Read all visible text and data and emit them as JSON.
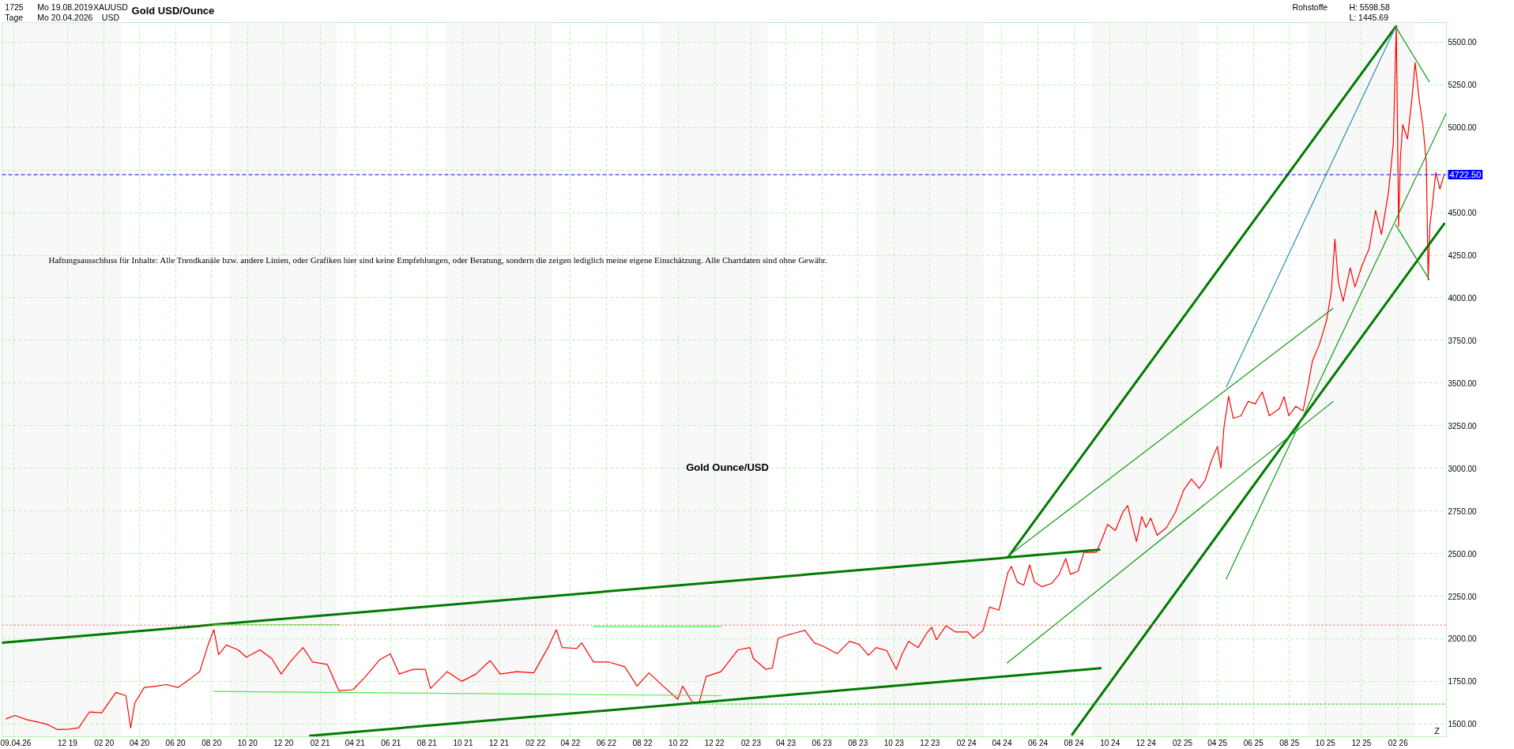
{
  "chart_data": {
    "type": "line",
    "title": "Gold USD/Ounce",
    "annotations": [
      "1725",
      "Tage",
      "Mo 19.08.2019",
      "Mo 20.04.2026",
      "XAUUSD",
      "USD",
      "Rohstoffe",
      "H: 5598.58",
      "L: 1445.69",
      "Haftungsausschluss für Inhalte: Alle Trendkanäle bzw. andere Linien, oder Grafiken hier sind keine Empfehlungen, oder Beratung, sondern die zeigen lediglich meine eigene Einschätzung. Alle Chartdaten sind ohne Gewähr.",
      "Gold Ounce/USD",
      "Z"
    ],
    "xlim": [
      "2019-08-12",
      "2026-04-24"
    ],
    "ylim": [
      1425,
      5615
    ],
    "xticks": [
      {
        "value": "2019-09-01",
        "label": "09.04.26"
      },
      {
        "value": "2019-12-01",
        "label": "12 19"
      },
      {
        "value": "2020-02-01",
        "label": "02 20"
      },
      {
        "value": "2020-04-01",
        "label": "04 20"
      },
      {
        "value": "2020-06-01",
        "label": "06 20"
      },
      {
        "value": "2020-08-01",
        "label": "08 20"
      },
      {
        "value": "2020-10-01",
        "label": "10 20"
      },
      {
        "value": "2020-12-01",
        "label": "12 20"
      },
      {
        "value": "2021-02-01",
        "label": "02 21"
      },
      {
        "value": "2021-04-01",
        "label": "04 21"
      },
      {
        "value": "2021-06-01",
        "label": "06 21"
      },
      {
        "value": "2021-08-01",
        "label": "08 21"
      },
      {
        "value": "2021-10-01",
        "label": "10 21"
      },
      {
        "value": "2021-12-01",
        "label": "12 21"
      },
      {
        "value": "2022-02-01",
        "label": "02 22"
      },
      {
        "value": "2022-04-01",
        "label": "04 22"
      },
      {
        "value": "2022-06-01",
        "label": "06 22"
      },
      {
        "value": "2022-08-01",
        "label": "08 22"
      },
      {
        "value": "2022-10-01",
        "label": "10 22"
      },
      {
        "value": "2022-12-01",
        "label": "12 22"
      },
      {
        "value": "2023-02-01",
        "label": "02 23"
      },
      {
        "value": "2023-04-01",
        "label": "04 23"
      },
      {
        "value": "2023-06-01",
        "label": "06 23"
      },
      {
        "value": "2023-08-01",
        "label": "08 23"
      },
      {
        "value": "2023-10-01",
        "label": "10 23"
      },
      {
        "value": "2023-12-01",
        "label": "12 23"
      },
      {
        "value": "2024-02-01",
        "label": "02 24"
      },
      {
        "value": "2024-04-01",
        "label": "04 24"
      },
      {
        "value": "2024-06-01",
        "label": "06 24"
      },
      {
        "value": "2024-08-01",
        "label": "08 24"
      },
      {
        "value": "2024-10-01",
        "label": "10 24"
      },
      {
        "value": "2024-12-01",
        "label": "12 24"
      },
      {
        "value": "2025-02-01",
        "label": "02 25"
      },
      {
        "value": "2025-04-01",
        "label": "04 25"
      },
      {
        "value": "2025-06-01",
        "label": "06 25"
      },
      {
        "value": "2025-08-01",
        "label": "08 25"
      },
      {
        "value": "2025-10-01",
        "label": "10 25"
      },
      {
        "value": "2025-12-01",
        "label": "12 25"
      },
      {
        "value": "2026-02-01",
        "label": "02 26"
      }
    ],
    "yticks": [
      {
        "value": 1500,
        "label": "1500.00"
      },
      {
        "value": 1750,
        "label": "1750.00"
      },
      {
        "value": 2000,
        "label": "2000.00"
      },
      {
        "value": 2250,
        "label": "2250.00"
      },
      {
        "value": 2500,
        "label": "2500.00"
      },
      {
        "value": 2750,
        "label": "2750.00"
      },
      {
        "value": 3000,
        "label": "3000.00"
      },
      {
        "value": 3250,
        "label": "3250.00"
      },
      {
        "value": 3500,
        "label": "3500.00"
      },
      {
        "value": 3750,
        "label": "3750.00"
      },
      {
        "value": 4000,
        "label": "4000.00"
      },
      {
        "value": 4250,
        "label": "4250.00"
      },
      {
        "value": 4500,
        "label": "4500.00"
      },
      {
        "value": 4750,
        "label": null
      },
      {
        "value": 5000,
        "label": "5000.00"
      },
      {
        "value": 5250,
        "label": "5250.00"
      },
      {
        "value": 5500,
        "label": "5500.00"
      }
    ],
    "grid": true,
    "series": [
      {
        "color": "#ff0000",
        "x": [
          "2019-08-19",
          "2019-09-03",
          "2019-09-23",
          "2019-10-13",
          "2019-10-29",
          "2019-11-14",
          "2019-12-04",
          "2019-12-20",
          "2020-01-07",
          "2020-01-28",
          "2020-02-21",
          "2020-03-09",
          "2020-03-17",
          "2020-03-24",
          "2020-04-09",
          "2020-04-30",
          "2020-05-16",
          "2020-06-05",
          "2020-06-26",
          "2020-07-12",
          "2020-07-26",
          "2020-08-05",
          "2020-08-13",
          "2020-08-26",
          "2020-09-15",
          "2020-09-29",
          "2020-10-22",
          "2020-11-11",
          "2020-11-27",
          "2020-12-14",
          "2021-01-03",
          "2021-01-19",
          "2021-02-13",
          "2021-03-05",
          "2021-03-29",
          "2021-04-19",
          "2021-05-13",
          "2021-05-31",
          "2021-06-15",
          "2021-07-09",
          "2021-07-29",
          "2021-08-07",
          "2021-09-04",
          "2021-09-29",
          "2021-10-23",
          "2021-11-16",
          "2021-12-03",
          "2021-12-31",
          "2022-01-29",
          "2022-02-22",
          "2022-03-08",
          "2022-03-18",
          "2022-04-12",
          "2022-04-20",
          "2022-05-10",
          "2022-06-04",
          "2022-07-02",
          "2022-07-23",
          "2022-08-12",
          "2022-09-05",
          "2022-09-30",
          "2022-10-08",
          "2022-10-24",
          "2022-11-05",
          "2022-11-17",
          "2022-12-12",
          "2023-01-10",
          "2023-01-30",
          "2023-02-05",
          "2023-02-26",
          "2023-03-09",
          "2023-03-19",
          "2023-04-04",
          "2023-04-14",
          "2023-05-03",
          "2023-05-19",
          "2023-06-03",
          "2023-06-27",
          "2023-07-18",
          "2023-08-03",
          "2023-08-19",
          "2023-09-01",
          "2023-09-19",
          "2023-10-05",
          "2023-10-15",
          "2023-10-26",
          "2023-11-11",
          "2023-11-27",
          "2023-12-04",
          "2023-12-12",
          "2023-12-28",
          "2024-01-13",
          "2024-02-03",
          "2024-02-13",
          "2024-02-29",
          "2024-03-11",
          "2024-03-27",
          "2024-04-03",
          "2024-04-11",
          "2024-04-17",
          "2024-04-27",
          "2024-05-08",
          "2024-05-18",
          "2024-05-26",
          "2024-06-08",
          "2024-06-24",
          "2024-07-07",
          "2024-07-18",
          "2024-07-26",
          "2024-08-08",
          "2024-08-18",
          "2024-08-31",
          "2024-09-08",
          "2024-09-19",
          "2024-09-27",
          "2024-10-10",
          "2024-10-23",
          "2024-10-31",
          "2024-11-10",
          "2024-11-15",
          "2024-11-24",
          "2024-12-01",
          "2024-12-09",
          "2024-12-20",
          "2025-01-05",
          "2025-01-20",
          "2025-02-03",
          "2025-02-16",
          "2025-03-01",
          "2025-03-11",
          "2025-03-22",
          "2025-04-01",
          "2025-04-07",
          "2025-04-12",
          "2025-04-20",
          "2025-04-28",
          "2025-05-11",
          "2025-05-23",
          "2025-06-04",
          "2025-06-16",
          "2025-06-28",
          "2025-07-15",
          "2025-07-23",
          "2025-07-31",
          "2025-08-12",
          "2025-08-24",
          "2025-09-01",
          "2025-09-09",
          "2025-09-21",
          "2025-10-03",
          "2025-10-11",
          "2025-10-17",
          "2025-10-23",
          "2025-10-31",
          "2025-11-12",
          "2025-11-20",
          "2025-12-02",
          "2025-12-14",
          "2025-12-25",
          "2026-01-04",
          "2026-01-16",
          "2026-01-24",
          "2026-01-29",
          "2026-02-02",
          "2026-02-05",
          "2026-02-09",
          "2026-02-17",
          "2026-02-25",
          "2026-03-02",
          "2026-03-09",
          "2026-03-15",
          "2026-03-21",
          "2026-03-24",
          "2026-03-27",
          "2026-03-31",
          "2026-04-06",
          "2026-04-13",
          "2026-04-20"
        ],
        "values": [
          1530,
          1550,
          1525,
          1510,
          1496,
          1467,
          1470,
          1478,
          1570,
          1566,
          1685,
          1666,
          1476,
          1623,
          1714,
          1722,
          1731,
          1714,
          1765,
          1807,
          1963,
          2053,
          1906,
          1963,
          1935,
          1892,
          1935,
          1884,
          1793,
          1872,
          1948,
          1864,
          1850,
          1694,
          1702,
          1779,
          1877,
          1912,
          1793,
          1821,
          1821,
          1708,
          1807,
          1750,
          1793,
          1872,
          1793,
          1807,
          1800,
          1948,
          2053,
          1948,
          1943,
          1976,
          1864,
          1864,
          1836,
          1722,
          1800,
          1722,
          1645,
          1722,
          1630,
          1625,
          1779,
          1807,
          1935,
          1948,
          1884,
          1820,
          1829,
          2003,
          2022,
          2031,
          2050,
          1976,
          1957,
          1912,
          1985,
          1967,
          1903,
          1948,
          1930,
          1820,
          1912,
          1985,
          1948,
          2040,
          2067,
          1994,
          2076,
          2040,
          2040,
          2003,
          2049,
          2186,
          2168,
          2269,
          2388,
          2424,
          2333,
          2314,
          2433,
          2333,
          2305,
          2324,
          2378,
          2470,
          2378,
          2397,
          2507,
          2507,
          2507,
          2598,
          2671,
          2635,
          2744,
          2781,
          2635,
          2571,
          2717,
          2653,
          2708,
          2607,
          2653,
          2744,
          2873,
          2937,
          2882,
          2927,
          3046,
          3129,
          3001,
          3238,
          3422,
          3293,
          3308,
          3392,
          3378,
          3448,
          3308,
          3350,
          3420,
          3308,
          3364,
          3336,
          3476,
          3630,
          3728,
          3868,
          4036,
          4344,
          4092,
          3980,
          4176,
          4064,
          4190,
          4288,
          4512,
          4372,
          4624,
          4904,
          5598,
          4420,
          4820,
          5016,
          4932,
          5184,
          5380,
          5156,
          5016,
          4792,
          4106,
          4428,
          4540,
          4736,
          4638,
          4722.5
        ]
      },
      {
        "color": "#007a00",
        "x": [
          "2019-08-12",
          "2024-09-13"
        ],
        "values": [
          1977,
          2522
        ]
      },
      {
        "color": "#007a00",
        "x": [
          "2021-01-15",
          "2024-09-15"
        ],
        "values": [
          1431,
          1827
        ]
      },
      {
        "color": "#007a00",
        "x": [
          "2024-04-11",
          "2026-01-28"
        ],
        "values": [
          2477,
          5590
        ]
      },
      {
        "color": "#007a00",
        "x": [
          "2024-07-29",
          "2026-04-20"
        ],
        "values": [
          1438,
          4434
        ]
      },
      {
        "color": "#159a15",
        "x": [
          "2024-04-10",
          "2025-10-14"
        ],
        "values": [
          2482,
          3938
        ]
      },
      {
        "color": "#159a15",
        "x": [
          "2024-04-10",
          "2025-10-14"
        ],
        "values": [
          1858,
          3392
        ]
      },
      {
        "color": "#159a15",
        "x": [
          "2025-04-16",
          "2026-04-24"
        ],
        "values": [
          2351,
          5086
        ]
      },
      {
        "color": "#2a8fb0",
        "x": [
          "2025-04-16",
          "2026-01-28"
        ],
        "values": [
          3476,
          5590
        ]
      },
      {
        "color": "#159a15",
        "x": [
          "2026-01-28",
          "2026-03-26"
        ],
        "values": [
          5590,
          5268
        ]
      },
      {
        "color": "#159a15",
        "x": [
          "2026-01-28",
          "2026-03-26"
        ],
        "values": [
          4428,
          4106
        ]
      },
      {
        "color": "#44ee44",
        "x": [
          "2020-08-05",
          "2021-03-06"
        ],
        "values": [
          2082,
          2082
        ]
      },
      {
        "color": "#44ee44",
        "x": [
          "2022-05-10",
          "2022-12-12"
        ],
        "values": [
          2071,
          2071
        ]
      },
      {
        "color": "#44ee44",
        "x": [
          "2020-08-05",
          "2022-12-12"
        ],
        "values": [
          1691,
          1666
        ]
      },
      {
        "color": "#22dd22",
        "x": [
          "2022-10-24",
          "2026-04-24"
        ],
        "values": [
          1617,
          1617
        ],
        "line_style": "dotted"
      }
    ],
    "ref_lines": [
      {
        "axis": "y",
        "value": 4722.5,
        "label": "4722.50",
        "color": "#0000ff",
        "line_style": "dashed"
      },
      {
        "axis": "y",
        "value": 2080,
        "color": "#ff5050",
        "line_style": "dotted"
      }
    ],
    "bands": [
      {
        "axis": "x",
        "from": "2019-08-12",
        "to": "2020-03-01",
        "color": "#f8f8f8"
      },
      {
        "axis": "x",
        "from": "2020-09-01",
        "to": "2021-03-01",
        "color": "#f8f8f8"
      },
      {
        "axis": "x",
        "from": "2021-09-01",
        "to": "2022-03-01",
        "color": "#f8f8f8"
      },
      {
        "axis": "x",
        "from": "2022-09-01",
        "to": "2023-03-01",
        "color": "#f8f8f8"
      },
      {
        "axis": "x",
        "from": "2023-09-01",
        "to": "2024-03-01",
        "color": "#f8f8f8"
      },
      {
        "axis": "x",
        "from": "2024-09-01",
        "to": "2025-03-01",
        "color": "#f8f8f8"
      },
      {
        "axis": "x",
        "from": "2025-09-01",
        "to": "2026-03-01",
        "color": "#f8f8f8"
      }
    ]
  }
}
